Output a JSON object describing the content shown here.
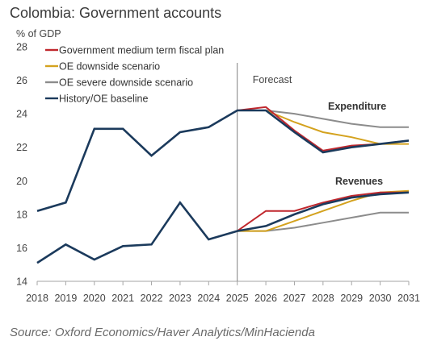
{
  "title": "Colombia: Government accounts",
  "source": "Source: Oxford Economics/Haver Analytics/MinHacienda",
  "chart_data": {
    "type": "line",
    "ylabel": "% of GDP",
    "ylim": [
      14,
      28
    ],
    "yticks": [
      "14",
      "16",
      "18",
      "20",
      "22",
      "24",
      "26",
      "28"
    ],
    "categories": [
      "2018",
      "2019",
      "2020",
      "2021",
      "2022",
      "2023",
      "2024",
      "2025",
      "2026",
      "2027",
      "2028",
      "2029",
      "2030",
      "2031"
    ],
    "grid": false,
    "legend_position": "top-left",
    "forecast_label": "Forecast",
    "forecast_start": "2025",
    "group_labels": {
      "expenditure": "Expenditure",
      "revenues": "Revenues"
    },
    "colors": {
      "gov_plan": "#c0272d",
      "downside": "#d4a21e",
      "severe": "#8c8c8c",
      "baseline": "#1b3a5c"
    },
    "legend": [
      {
        "key": "gov_plan",
        "label": "Government medium term fiscal plan"
      },
      {
        "key": "downside",
        "label": "OE downside scenario"
      },
      {
        "key": "severe",
        "label": "OE severe downside scenario"
      },
      {
        "key": "baseline",
        "label": "History/OE baseline"
      }
    ],
    "series": [
      {
        "key": "gov_plan",
        "group": "expenditure",
        "x": [
          "2025",
          "2026",
          "2027",
          "2028",
          "2029",
          "2030",
          "2031"
        ],
        "values": [
          24.2,
          24.4,
          23.0,
          21.8,
          22.1,
          22.2,
          22.4
        ]
      },
      {
        "key": "downside",
        "group": "expenditure",
        "x": [
          "2025",
          "2026",
          "2027",
          "2028",
          "2029",
          "2030",
          "2031"
        ],
        "values": [
          24.2,
          24.2,
          23.5,
          22.9,
          22.6,
          22.2,
          22.2
        ]
      },
      {
        "key": "severe",
        "group": "expenditure",
        "x": [
          "2025",
          "2026",
          "2027",
          "2028",
          "2029",
          "2030",
          "2031"
        ],
        "values": [
          24.2,
          24.2,
          24.0,
          23.7,
          23.4,
          23.2,
          23.2
        ]
      },
      {
        "key": "baseline",
        "group": "expenditure",
        "x": [
          "2018",
          "2019",
          "2020",
          "2021",
          "2022",
          "2023",
          "2024",
          "2025",
          "2026",
          "2027",
          "2028",
          "2029",
          "2030",
          "2031"
        ],
        "values": [
          18.2,
          18.7,
          23.1,
          23.1,
          21.5,
          22.9,
          23.2,
          24.2,
          24.2,
          22.9,
          21.7,
          22.0,
          22.2,
          22.4
        ]
      },
      {
        "key": "gov_plan",
        "group": "revenues",
        "x": [
          "2025",
          "2026",
          "2027",
          "2028",
          "2029",
          "2030",
          "2031"
        ],
        "values": [
          17.0,
          18.2,
          18.2,
          18.7,
          19.1,
          19.3,
          19.3
        ]
      },
      {
        "key": "downside",
        "group": "revenues",
        "x": [
          "2025",
          "2026",
          "2027",
          "2028",
          "2029",
          "2030",
          "2031"
        ],
        "values": [
          17.0,
          17.0,
          17.6,
          18.2,
          18.8,
          19.3,
          19.4
        ]
      },
      {
        "key": "severe",
        "group": "revenues",
        "x": [
          "2025",
          "2026",
          "2027",
          "2028",
          "2029",
          "2030",
          "2031"
        ],
        "values": [
          17.0,
          17.0,
          17.2,
          17.5,
          17.8,
          18.1,
          18.1
        ]
      },
      {
        "key": "baseline",
        "group": "revenues",
        "x": [
          "2018",
          "2019",
          "2020",
          "2021",
          "2022",
          "2023",
          "2024",
          "2025",
          "2026",
          "2027",
          "2028",
          "2029",
          "2030",
          "2031"
        ],
        "values": [
          15.1,
          16.2,
          15.3,
          16.1,
          16.2,
          18.7,
          16.5,
          17.0,
          17.3,
          18.0,
          18.6,
          19.0,
          19.2,
          19.3
        ]
      }
    ]
  }
}
